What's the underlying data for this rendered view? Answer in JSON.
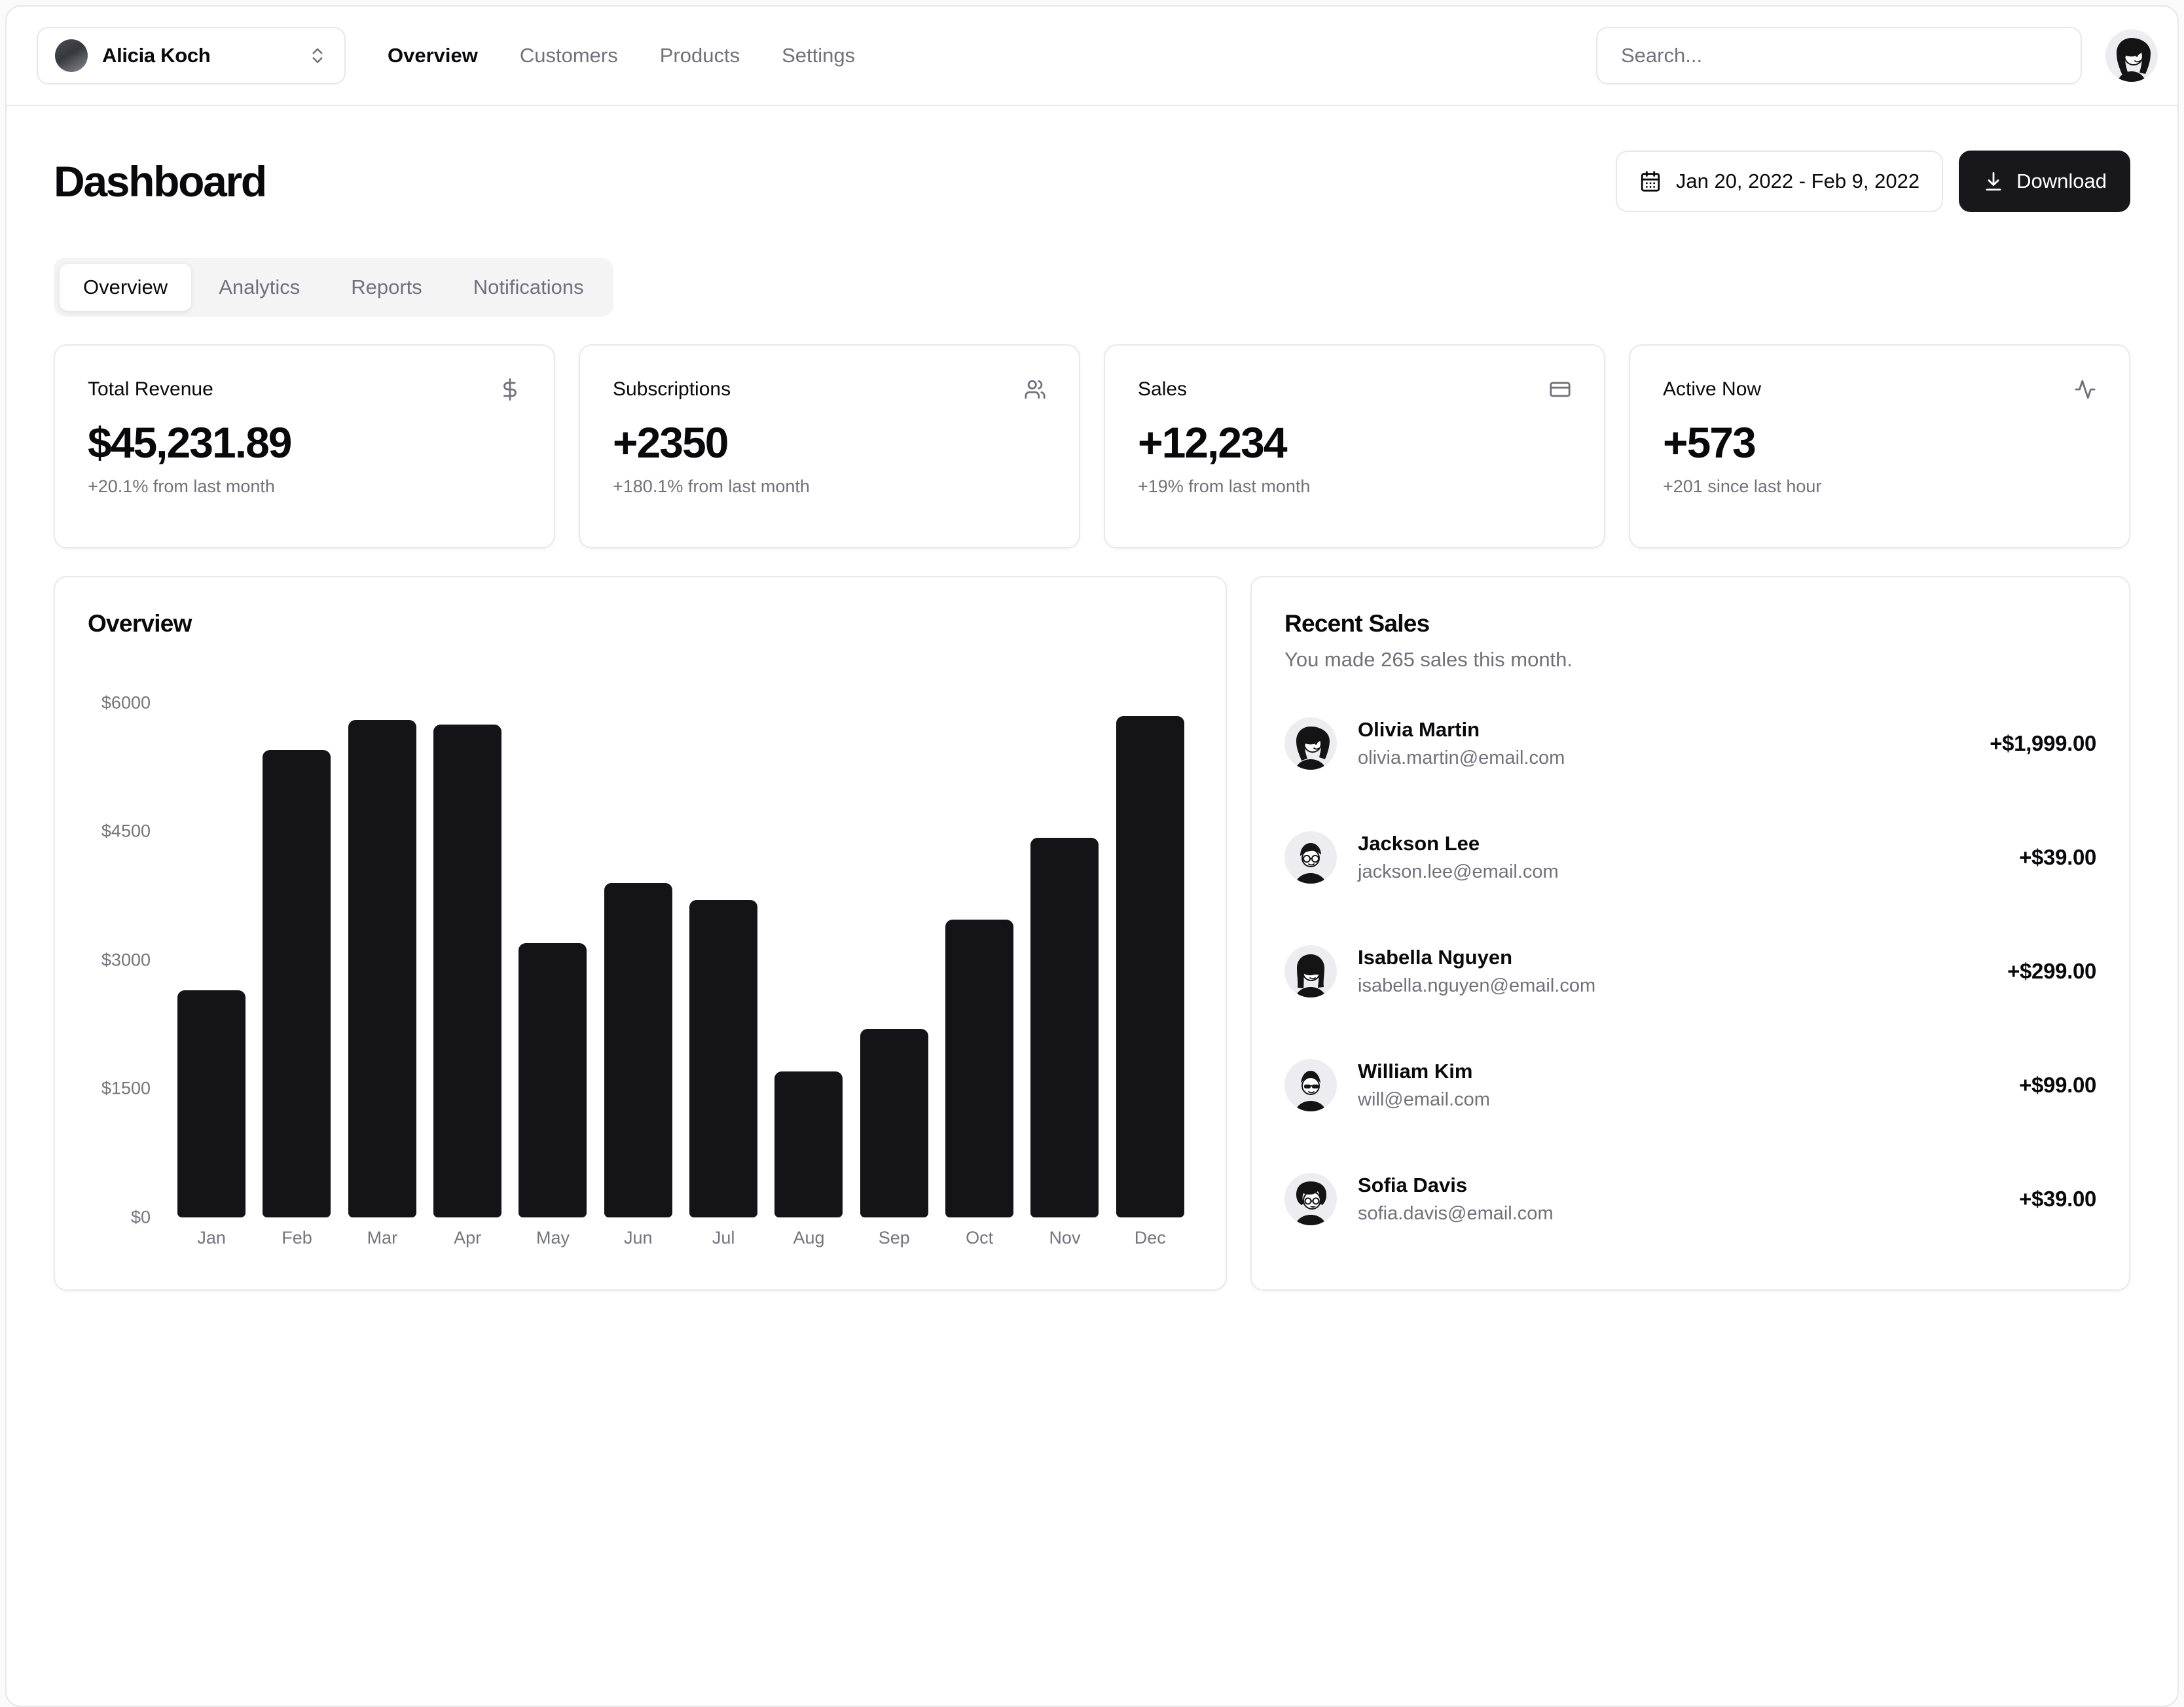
{
  "header": {
    "team_name": "Alicia Koch",
    "nav": [
      "Overview",
      "Customers",
      "Products",
      "Settings"
    ],
    "search_placeholder": "Search..."
  },
  "page": {
    "title": "Dashboard",
    "date_range": "Jan 20, 2022 - Feb 9, 2022",
    "download_label": "Download",
    "tabs": [
      "Overview",
      "Analytics",
      "Reports",
      "Notifications"
    ],
    "active_tab": "Overview"
  },
  "stats": [
    {
      "title": "Total Revenue",
      "icon": "dollar-icon",
      "value": "$45,231.89",
      "change": "+20.1% from last month"
    },
    {
      "title": "Subscriptions",
      "icon": "users-icon",
      "value": "+2350",
      "change": "+180.1% from last month"
    },
    {
      "title": "Sales",
      "icon": "credit-card-icon",
      "value": "+12,234",
      "change": "+19% from last month"
    },
    {
      "title": "Active Now",
      "icon": "activity-icon",
      "value": "+573",
      "change": "+201 since last hour"
    }
  ],
  "chart_data": {
    "type": "bar",
    "title": "Overview",
    "categories": [
      "Jan",
      "Feb",
      "Mar",
      "Apr",
      "May",
      "Jun",
      "Jul",
      "Aug",
      "Sep",
      "Oct",
      "Nov",
      "Dec"
    ],
    "values": [
      2650,
      5450,
      5800,
      5750,
      3200,
      3900,
      3700,
      1700,
      2200,
      3470,
      4430,
      5850
    ],
    "xlabel": "",
    "ylabel": "",
    "ylim": [
      0,
      6000
    ],
    "yticks": [
      0,
      1500,
      3000,
      4500,
      6000
    ],
    "ytick_labels": [
      "$0",
      "$1500",
      "$3000",
      "$4500",
      "$6000"
    ],
    "grid": false,
    "legend_position": "none",
    "bar_color": "#141417"
  },
  "recent_sales": {
    "title": "Recent Sales",
    "subtitle": "You made 265 sales this month.",
    "items": [
      {
        "name": "Olivia Martin",
        "email": "olivia.martin@email.com",
        "amount": "+$1,999.00"
      },
      {
        "name": "Jackson Lee",
        "email": "jackson.lee@email.com",
        "amount": "+$39.00"
      },
      {
        "name": "Isabella Nguyen",
        "email": "isabella.nguyen@email.com",
        "amount": "+$299.00"
      },
      {
        "name": "William Kim",
        "email": "will@email.com",
        "amount": "+$99.00"
      },
      {
        "name": "Sofia Davis",
        "email": "sofia.davis@email.com",
        "amount": "+$39.00"
      }
    ]
  },
  "colors": {
    "primary": "#18181b",
    "border": "#e4e4e7",
    "muted_text": "#71717a",
    "tab_bg": "#f4f4f5",
    "bar": "#141417"
  }
}
